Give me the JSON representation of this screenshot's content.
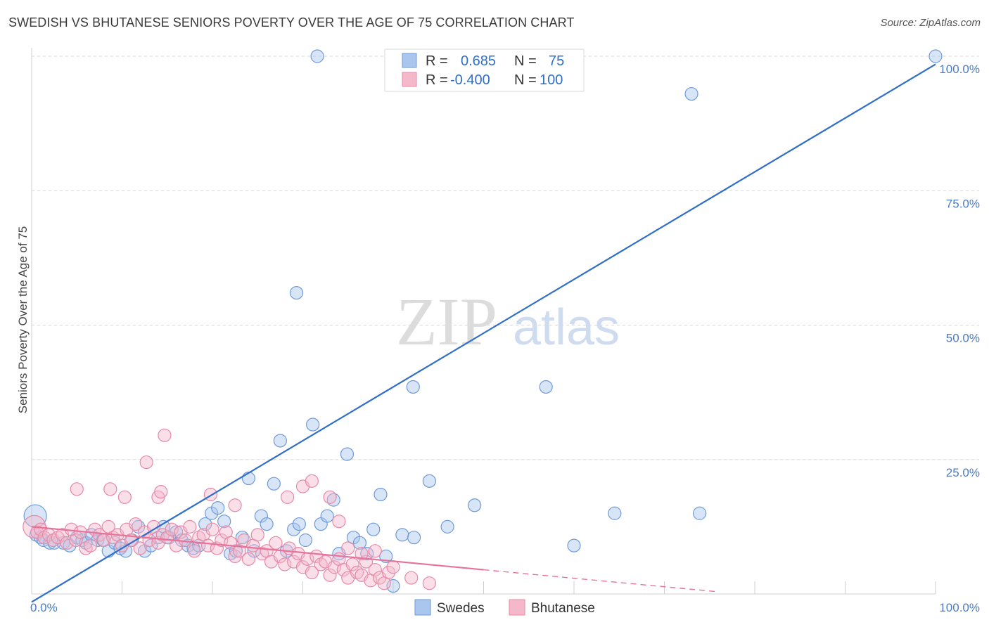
{
  "header": {
    "title": "SWEDISH VS BHUTANESE SENIORS POVERTY OVER THE AGE OF 75 CORRELATION CHART",
    "source": "Source: ZipAtlas.com"
  },
  "watermark": {
    "zip": "ZIP",
    "atlas": "atlas"
  },
  "legend": {
    "rows": [
      {
        "r_label": "R =",
        "r_value": "0.685",
        "n_label": "N =",
        "n_value": "75",
        "color": "#a9c6ee"
      },
      {
        "r_label": "R =",
        "r_value": "-0.400",
        "n_label": "N =",
        "n_value": "100",
        "color": "#f5b8cb"
      }
    ]
  },
  "bottom_legend": [
    {
      "label": "Swedes",
      "color": "#a9c6ee"
    },
    {
      "label": "Bhutanese",
      "color": "#f5b8cb"
    }
  ],
  "chart_data": {
    "type": "scatter",
    "title": "SWEDISH VS BHUTANESE SENIORS POVERTY OVER THE AGE OF 75 CORRELATION CHART",
    "xlabel": "",
    "ylabel": "Seniors Poverty Over the Age of 75",
    "xlim": [
      0,
      100
    ],
    "ylim": [
      0,
      100
    ],
    "x_tick_labels": [
      "0.0%",
      "100.0%"
    ],
    "y_ticks": [
      25,
      50,
      75,
      100
    ],
    "y_tick_labels": [
      "25.0%",
      "50.0%",
      "75.0%",
      "100.0%"
    ],
    "grid": true,
    "series": [
      {
        "name": "Swedes",
        "color": "#a9c6ee",
        "stroke": "#6f9bd8",
        "trend_color": "#2f6fc9",
        "trend": {
          "x0": 0,
          "y0": -1.5,
          "x1": 100,
          "y1": 98.5
        },
        "points": [
          [
            0.4,
            14.5
          ],
          [
            0.5,
            11
          ],
          [
            1,
            10.5
          ],
          [
            1.3,
            10
          ],
          [
            2,
            9.5
          ],
          [
            2.5,
            9.5
          ],
          [
            3.5,
            9.5
          ],
          [
            4.2,
            9
          ],
          [
            5,
            10.5
          ],
          [
            5.6,
            10
          ],
          [
            6,
            9.5
          ],
          [
            6.6,
            11
          ],
          [
            7.3,
            10
          ],
          [
            7.9,
            10
          ],
          [
            8.5,
            8
          ],
          [
            9.2,
            9.5
          ],
          [
            9.8,
            8.5
          ],
          [
            10.4,
            8
          ],
          [
            11.1,
            10
          ],
          [
            11.8,
            12.5
          ],
          [
            12.5,
            8
          ],
          [
            13.2,
            9
          ],
          [
            14,
            10.5
          ],
          [
            14.6,
            12.5
          ],
          [
            15.2,
            10.5
          ],
          [
            16,
            11.5
          ],
          [
            16.6,
            10
          ],
          [
            17.3,
            9
          ],
          [
            17.9,
            8.5
          ],
          [
            18.5,
            9
          ],
          [
            19.2,
            13
          ],
          [
            19.9,
            15
          ],
          [
            20.6,
            16
          ],
          [
            21.3,
            13.5
          ],
          [
            22,
            7.5
          ],
          [
            22.6,
            8
          ],
          [
            23.3,
            10.5
          ],
          [
            24,
            21.5
          ],
          [
            24.6,
            8
          ],
          [
            25.4,
            14.5
          ],
          [
            26,
            13
          ],
          [
            26.8,
            20.5
          ],
          [
            27.5,
            28.5
          ],
          [
            28.2,
            8
          ],
          [
            29,
            12
          ],
          [
            29.6,
            13
          ],
          [
            30.3,
            10
          ],
          [
            31.1,
            31.5
          ],
          [
            32,
            13
          ],
          [
            32.7,
            14.5
          ],
          [
            33.4,
            17.5
          ],
          [
            34,
            7.5
          ],
          [
            34.9,
            26
          ],
          [
            35.6,
            10.5
          ],
          [
            36.3,
            9.5
          ],
          [
            37.1,
            7.5
          ],
          [
            37.8,
            12
          ],
          [
            38.6,
            18.5
          ],
          [
            39.2,
            7
          ],
          [
            40,
            1.5
          ],
          [
            41,
            11
          ],
          [
            42.3,
            10.5
          ],
          [
            44,
            21
          ],
          [
            46,
            12.5
          ],
          [
            49,
            16.5
          ],
          [
            31.6,
            100
          ],
          [
            29.3,
            56
          ],
          [
            42.2,
            38.5
          ],
          [
            56.9,
            38.5
          ],
          [
            60,
            9
          ],
          [
            64.5,
            15
          ],
          [
            73.9,
            15
          ],
          [
            73,
            93
          ],
          [
            54,
            100
          ],
          [
            100,
            100
          ]
        ]
      },
      {
        "name": "Bhutanese",
        "color": "#f5b8cb",
        "stroke": "#e68aa7",
        "trend_color": "#e8739a",
        "trend": {
          "x0": 0,
          "y0": 12.5,
          "x1": 50,
          "y1": 4.5
        },
        "trend_dashed": {
          "x0": 50,
          "y0": 4.5,
          "x1": 76,
          "y1": 0.4
        },
        "points": [
          [
            0.3,
            12.5
          ],
          [
            0.6,
            11.5
          ],
          [
            1,
            12
          ],
          [
            1.4,
            10.5
          ],
          [
            1.9,
            11
          ],
          [
            2.4,
            10
          ],
          [
            2.9,
            10.5
          ],
          [
            3.4,
            11
          ],
          [
            3.9,
            9.5
          ],
          [
            4.4,
            12
          ],
          [
            4.9,
            10
          ],
          [
            5.4,
            11.5
          ],
          [
            6,
            8.5
          ],
          [
            6.5,
            9
          ],
          [
            7,
            12
          ],
          [
            7.5,
            11
          ],
          [
            8,
            10
          ],
          [
            8.5,
            12.5
          ],
          [
            9,
            10.5
          ],
          [
            9.5,
            11
          ],
          [
            10,
            9
          ],
          [
            10.5,
            12
          ],
          [
            11,
            10
          ],
          [
            11.5,
            13
          ],
          [
            12,
            8.5
          ],
          [
            12.5,
            11.5
          ],
          [
            13,
            10
          ],
          [
            13.5,
            12.5
          ],
          [
            14,
            9.5
          ],
          [
            14.5,
            11
          ],
          [
            15,
            10.5
          ],
          [
            15.5,
            12
          ],
          [
            16,
            9
          ],
          [
            16.5,
            11.5
          ],
          [
            17,
            10
          ],
          [
            17.5,
            12.5
          ],
          [
            18,
            8
          ],
          [
            18.5,
            10.5
          ],
          [
            19,
            11
          ],
          [
            19.5,
            9
          ],
          [
            20,
            12
          ],
          [
            20.5,
            8.5
          ],
          [
            21,
            10
          ],
          [
            21.5,
            11.5
          ],
          [
            22,
            9.5
          ],
          [
            22.5,
            7
          ],
          [
            23,
            8
          ],
          [
            23.5,
            10
          ],
          [
            24,
            6.5
          ],
          [
            24.5,
            9
          ],
          [
            25,
            11
          ],
          [
            25.5,
            7.5
          ],
          [
            26,
            8
          ],
          [
            26.5,
            6
          ],
          [
            27,
            9.5
          ],
          [
            27.5,
            7
          ],
          [
            28,
            5.5
          ],
          [
            28.5,
            8.5
          ],
          [
            29,
            6
          ],
          [
            29.5,
            7.5
          ],
          [
            30,
            5
          ],
          [
            30.5,
            6.5
          ],
          [
            31,
            4
          ],
          [
            31.5,
            7
          ],
          [
            32,
            5.5
          ],
          [
            32.5,
            6
          ],
          [
            33,
            3.5
          ],
          [
            33.5,
            5
          ],
          [
            34,
            6.5
          ],
          [
            34.5,
            4.5
          ],
          [
            35,
            3
          ],
          [
            35.5,
            5.5
          ],
          [
            36,
            4
          ],
          [
            36.5,
            3.5
          ],
          [
            37,
            6
          ],
          [
            37.5,
            2.5
          ],
          [
            38,
            4.5
          ],
          [
            38.5,
            3
          ],
          [
            39,
            2
          ],
          [
            39.5,
            4
          ],
          [
            5,
            19.5
          ],
          [
            8.7,
            19.5
          ],
          [
            10.3,
            18
          ],
          [
            12.7,
            24.5
          ],
          [
            14,
            18
          ],
          [
            14.3,
            19
          ],
          [
            14.7,
            29.5
          ],
          [
            19.8,
            18.5
          ],
          [
            22.5,
            16.5
          ],
          [
            28.3,
            18
          ],
          [
            30,
            20
          ],
          [
            31,
            21
          ],
          [
            33,
            18
          ],
          [
            34,
            13.5
          ],
          [
            35,
            8.5
          ],
          [
            36.5,
            7.5
          ],
          [
            38,
            8
          ],
          [
            40,
            5
          ],
          [
            42,
            3
          ],
          [
            44,
            2
          ]
        ]
      }
    ]
  }
}
